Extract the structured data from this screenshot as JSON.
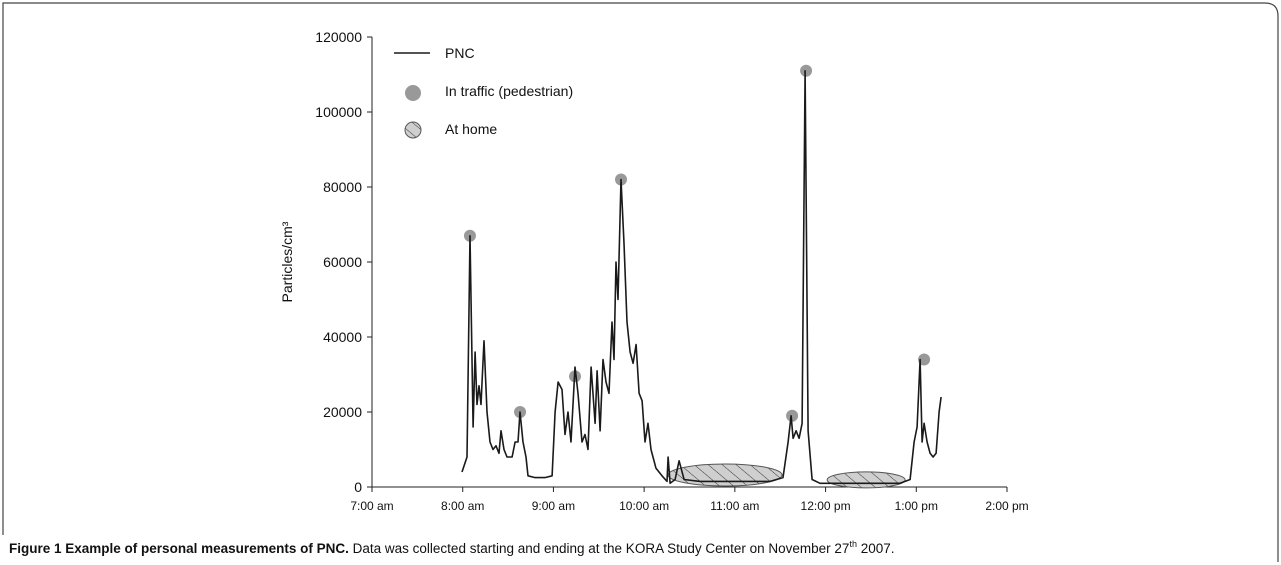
{
  "chart_data": {
    "type": "line",
    "y_label": "Particles/cm³",
    "ylim": [
      0,
      120000
    ],
    "yticks": [
      0,
      20000,
      40000,
      60000,
      80000,
      100000,
      120000
    ],
    "xlim": [
      7,
      14
    ],
    "xticks": [
      {
        "value": 7,
        "label": "7:00 am"
      },
      {
        "value": 8,
        "label": "8:00 am"
      },
      {
        "value": 9,
        "label": "9:00 am"
      },
      {
        "value": 10,
        "label": "10:00 am"
      },
      {
        "value": 11,
        "label": "11:00 am"
      },
      {
        "value": 12,
        "label": "12:00 pm"
      },
      {
        "value": 13,
        "label": "1:00 pm"
      },
      {
        "value": 14,
        "label": "2:00 pm"
      }
    ],
    "legend": "upper left",
    "series": [
      {
        "name": "PNC",
        "color": "#1a1a1a",
        "style": "line",
        "x": [
          7.992,
          8.047,
          8.08,
          8.114,
          8.136,
          8.158,
          8.18,
          8.202,
          8.235,
          8.268,
          8.301,
          8.334,
          8.367,
          8.4,
          8.422,
          8.455,
          8.488,
          8.544,
          8.577,
          8.61,
          8.632,
          8.665,
          8.698,
          8.72,
          8.797,
          8.907,
          8.985,
          9.018,
          9.051,
          9.095,
          9.128,
          9.161,
          9.194,
          9.238,
          9.271,
          9.315,
          9.348,
          9.381,
          9.415,
          9.459,
          9.481,
          9.514,
          9.547,
          9.58,
          9.613,
          9.646,
          9.668,
          9.69,
          9.712,
          9.745,
          9.778,
          9.811,
          9.845,
          9.878,
          9.911,
          9.944,
          9.977,
          10.01,
          10.043,
          10.076,
          10.131,
          10.197,
          10.252,
          10.264,
          10.286,
          10.341,
          10.385,
          10.44,
          10.616,
          11.057,
          11.388,
          11.531,
          11.587,
          11.62,
          11.642,
          11.675,
          11.708,
          11.741,
          11.774,
          11.807,
          11.851,
          11.939,
          12.38,
          12.821,
          12.932,
          12.976,
          13.009,
          13.042,
          13.064,
          13.086,
          13.119,
          13.152,
          13.185,
          13.218,
          13.251,
          13.273
        ],
        "values": [
          4000,
          8000,
          67000,
          16000,
          36000,
          22000,
          27000,
          22000,
          39000,
          20000,
          12000,
          10000,
          11000,
          9000,
          15000,
          10000,
          8000,
          8000,
          12000,
          12000,
          20000,
          12000,
          8000,
          3000,
          2500,
          2500,
          3000,
          20000,
          28000,
          26000,
          14000,
          20000,
          12000,
          32000,
          25000,
          12000,
          14000,
          10000,
          32000,
          17000,
          31000,
          15000,
          34000,
          28000,
          25000,
          44000,
          34000,
          60000,
          50000,
          82000,
          65000,
          44000,
          36000,
          33000,
          38000,
          25000,
          23000,
          12000,
          17000,
          10000,
          5000,
          3000,
          1500,
          8000,
          1000,
          2000,
          7000,
          2000,
          1500,
          1500,
          1500,
          2500,
          12000,
          19000,
          13000,
          15000,
          13000,
          17000,
          111000,
          15000,
          2000,
          1000,
          1000,
          1000,
          2000,
          12000,
          16000,
          34000,
          12000,
          17000,
          12000,
          9000,
          8000,
          9000,
          20000,
          24000
        ]
      },
      {
        "name": "In traffic (pedestrian)",
        "color": "#999999",
        "style": "circle",
        "x": [
          8.08,
          8.632,
          9.238,
          9.745,
          11.631,
          11.785,
          13.086
        ],
        "values": [
          67000,
          20000,
          29500,
          82000,
          19000,
          111000,
          34000
        ]
      },
      {
        "name": "At home",
        "color": "#cfcfcf",
        "style": "hatched",
        "x": [
          10.892,
          12.447
        ],
        "values": [
          3200,
          1900
        ]
      }
    ]
  },
  "caption": {
    "label": "Figure 1",
    "title": "Example of personal measurements of PNC.",
    "text": "Data was collected starting and ending at the KORA Study Center on November 27",
    "superscript": "th",
    "text_end": "2007."
  }
}
